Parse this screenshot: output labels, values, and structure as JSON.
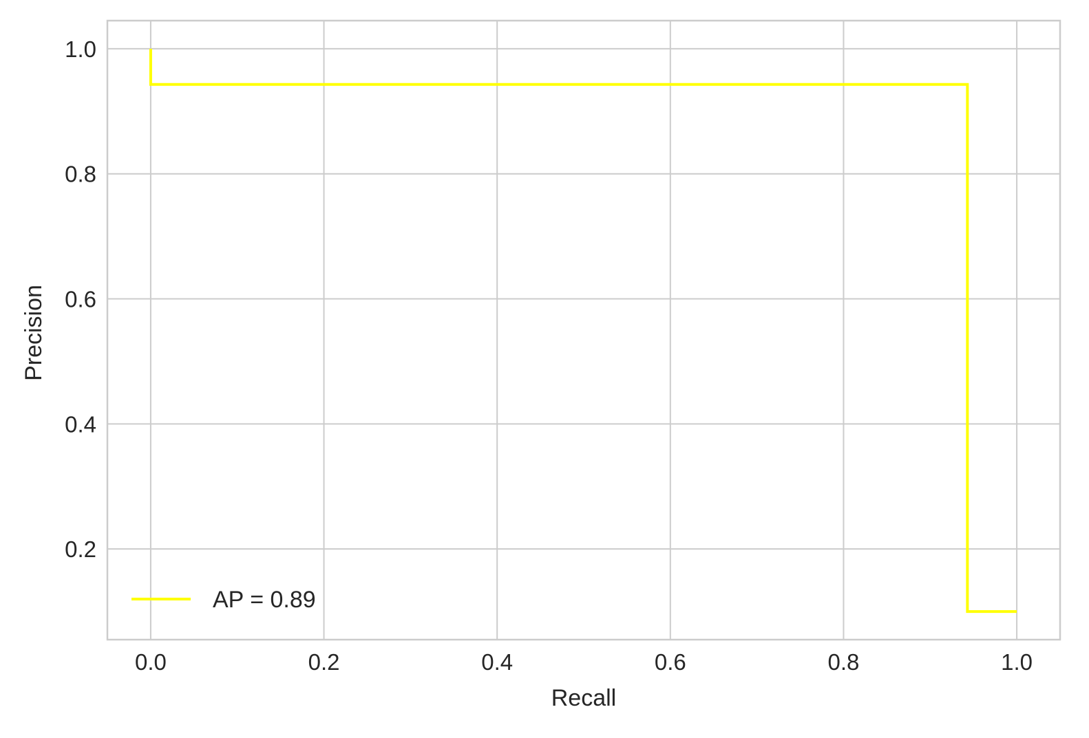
{
  "chart_data": {
    "type": "line",
    "step": true,
    "title": "",
    "xlabel": "Recall",
    "ylabel": "Precision",
    "xlim": [
      -0.05,
      1.05
    ],
    "ylim": [
      0.055,
      1.045
    ],
    "xticks": [
      0.0,
      0.2,
      0.4,
      0.6,
      0.8,
      1.0
    ],
    "xtick_labels": [
      "0.0",
      "0.2",
      "0.4",
      "0.6",
      "0.8",
      "1.0"
    ],
    "yticks": [
      0.2,
      0.4,
      0.6,
      0.8,
      1.0
    ],
    "ytick_labels": [
      "0.2",
      "0.4",
      "0.6",
      "0.8",
      "1.0"
    ],
    "grid": true,
    "legend_position": "lower-left",
    "series": [
      {
        "name": "AP = 0.89",
        "color": "#ffff00",
        "x": [
          0.0,
          0.0,
          0.943,
          0.943,
          1.0
        ],
        "y": [
          1.0,
          0.943,
          0.943,
          0.1,
          0.1
        ]
      }
    ]
  }
}
